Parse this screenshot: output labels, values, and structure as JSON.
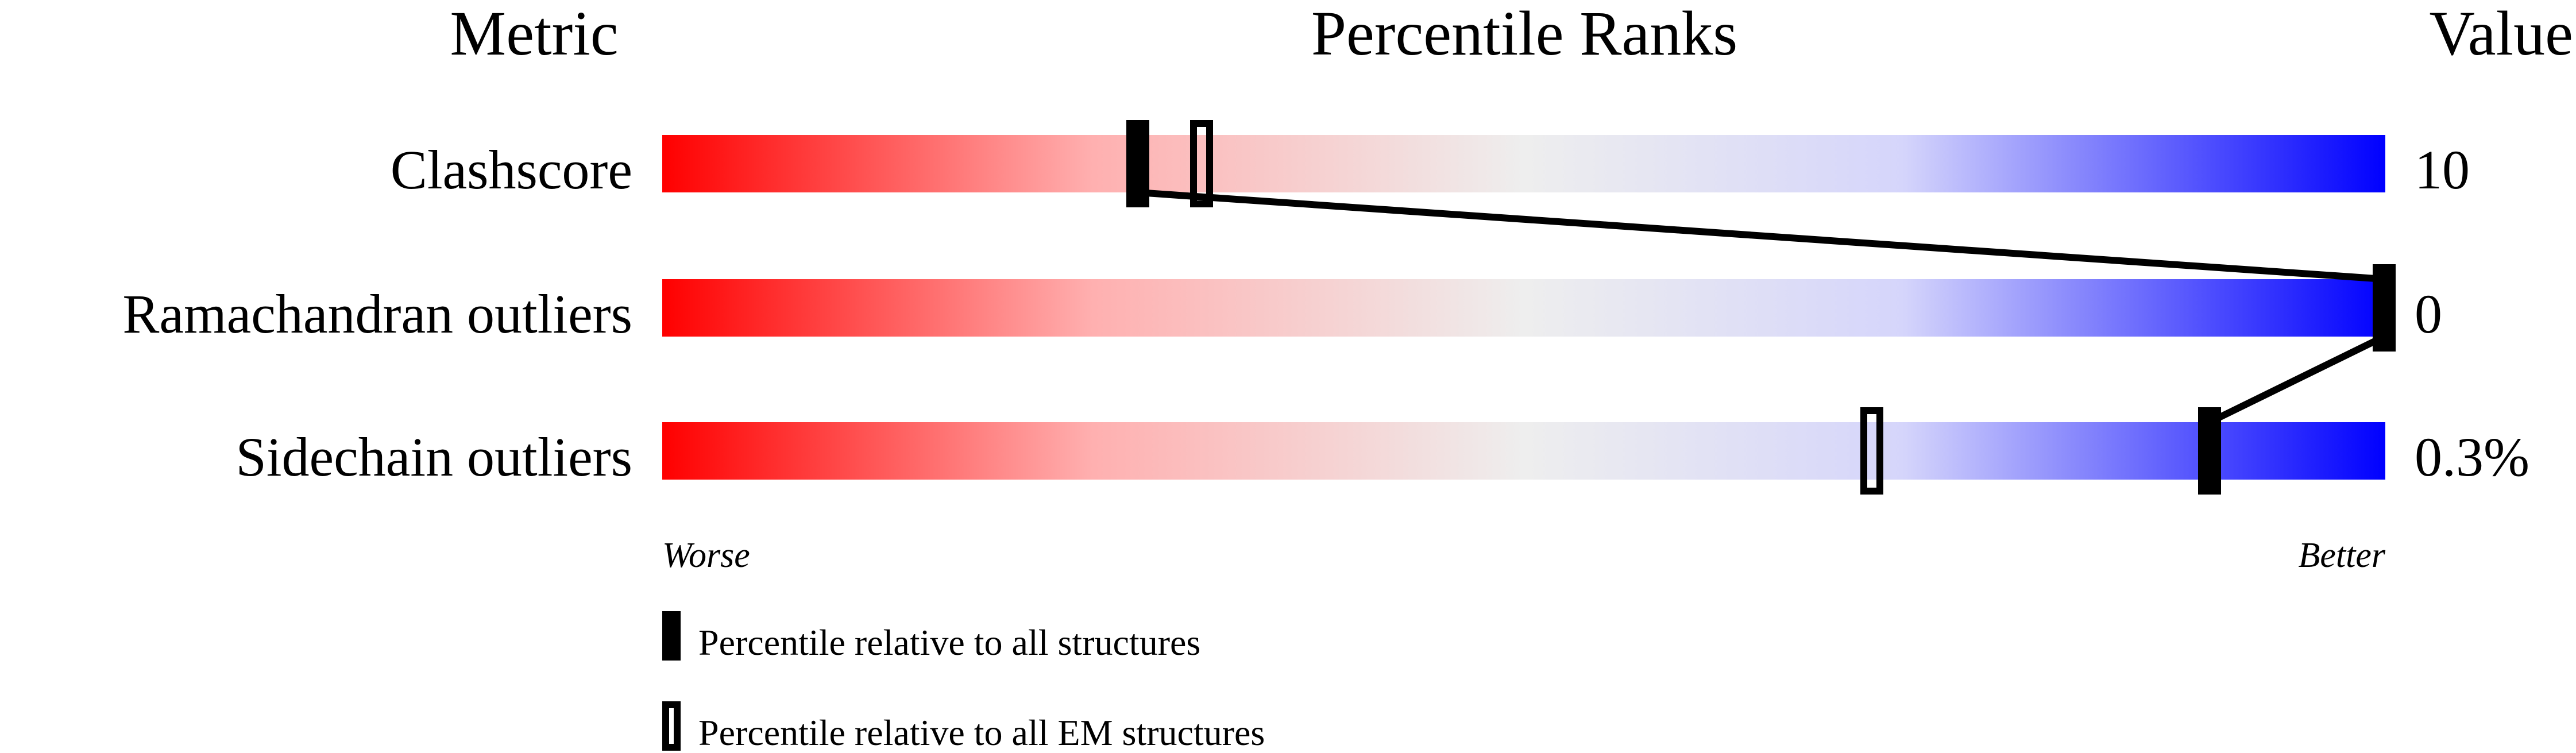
{
  "chart_data": {
    "type": "percentile-bar",
    "headers": {
      "metric": "Metric",
      "ranks": "Percentile Ranks",
      "value": "Value"
    },
    "axis": {
      "left_label": "Worse",
      "right_label": "Better",
      "range": [
        0,
        100
      ]
    },
    "gradient_colors": [
      "#ff0000",
      "#ffb0b0",
      "#eeeeee",
      "#d5d5fb",
      "#0000ff"
    ],
    "metrics": [
      {
        "name": "Clashscore",
        "value": "10",
        "percentile_all": 27.6,
        "percentile_em": 31.3
      },
      {
        "name": "Ramachandran outliers",
        "value": "0",
        "percentile_all": 100,
        "percentile_em": null
      },
      {
        "name": "Sidechain outliers",
        "value": "0.3%",
        "percentile_all": 89.8,
        "percentile_em": 70.2
      }
    ],
    "legend": [
      {
        "marker": "filled",
        "label": "Percentile relative to all structures"
      },
      {
        "marker": "open",
        "label": "Percentile relative to all EM structures"
      }
    ]
  }
}
